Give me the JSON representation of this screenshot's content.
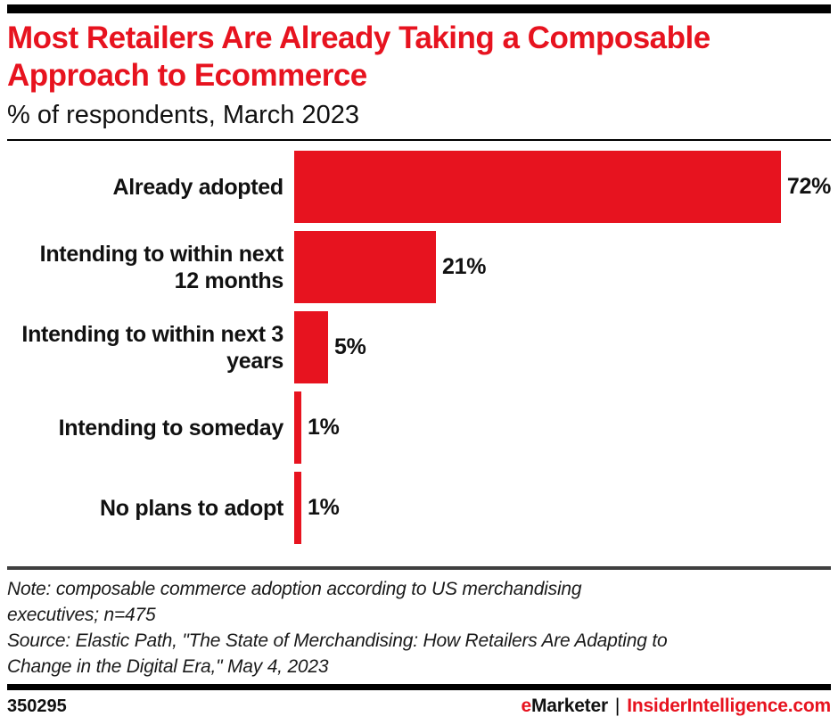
{
  "chart_data": {
    "type": "bar",
    "orientation": "horizontal",
    "title": "Most Retailers Are Already Taking a Composable Approach to Ecommerce",
    "subtitle": "% of respondents, March 2023",
    "categories": [
      "Already adopted",
      "Intending to within next\n12 months",
      "Intending to within next 3\nyears",
      "Intending to someday",
      "No plans to adopt"
    ],
    "values": [
      72,
      21,
      5,
      1,
      1
    ],
    "value_labels": [
      "72%",
      "21%",
      "5%",
      "1%",
      "1%"
    ],
    "scale_max": 72,
    "xlim": [
      0,
      75
    ],
    "grid": false,
    "legend": "none",
    "bar_color": "#e7131f"
  },
  "notes": {
    "note_lines": [
      "Note: composable commerce adoption according to US merchandising",
      "executives; n=475"
    ],
    "source_lines": [
      "Source: Elastic Path, \"The State of Merchandising: How Retailers Are Adapting to",
      "Change in the Digital Era,\" May 4, 2023"
    ]
  },
  "footer": {
    "chart_id": "350295",
    "brand_prefix": "e",
    "brand_name": "Marketer",
    "separator": "|",
    "brand_site": "InsiderIntelligence.com"
  },
  "colors": {
    "accent_red": "#e7131f",
    "divider_dark": "#3f3f3f",
    "text_black": "#111111",
    "bar_black": "#000000"
  }
}
